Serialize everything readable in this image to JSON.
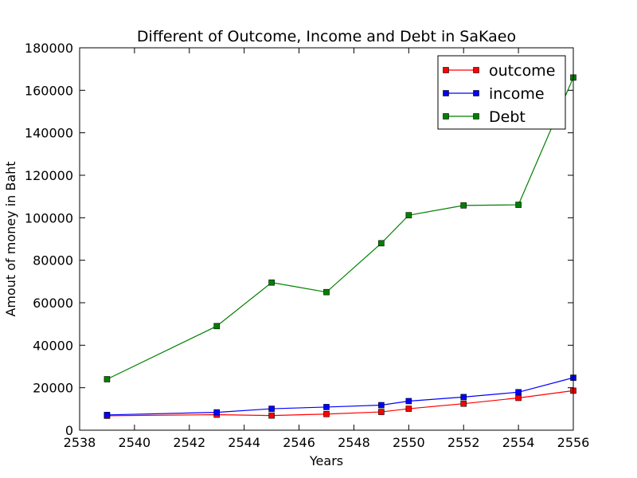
{
  "chart_data": {
    "type": "line",
    "title": "Different of Outcome, Income and Debt in SaKaeo",
    "xlabel": "Years",
    "ylabel": "Amout of money in Baht",
    "xlim": [
      2538,
      2556
    ],
    "ylim": [
      0,
      180000
    ],
    "xticks": [
      2538,
      2540,
      2542,
      2544,
      2546,
      2548,
      2550,
      2552,
      2554,
      2556
    ],
    "yticks": [
      0,
      20000,
      40000,
      60000,
      80000,
      100000,
      120000,
      140000,
      160000,
      180000
    ],
    "grid": false,
    "legend_position": "top-right",
    "x": [
      2539,
      2543,
      2545,
      2547,
      2549,
      2550,
      2552,
      2554,
      2556
    ],
    "series": [
      {
        "name": "outcome",
        "color": "#ff0000",
        "values": [
          6800,
          7300,
          6900,
          7600,
          8600,
          10100,
          12500,
          15200,
          18600
        ]
      },
      {
        "name": "income",
        "color": "#0000ff",
        "values": [
          7200,
          8400,
          10100,
          10900,
          11800,
          13700,
          15600,
          17900,
          24700
        ]
      },
      {
        "name": "Debt",
        "color": "#008000",
        "values": [
          24000,
          49000,
          69500,
          65000,
          88000,
          101200,
          105800,
          106100,
          166000
        ]
      }
    ]
  }
}
